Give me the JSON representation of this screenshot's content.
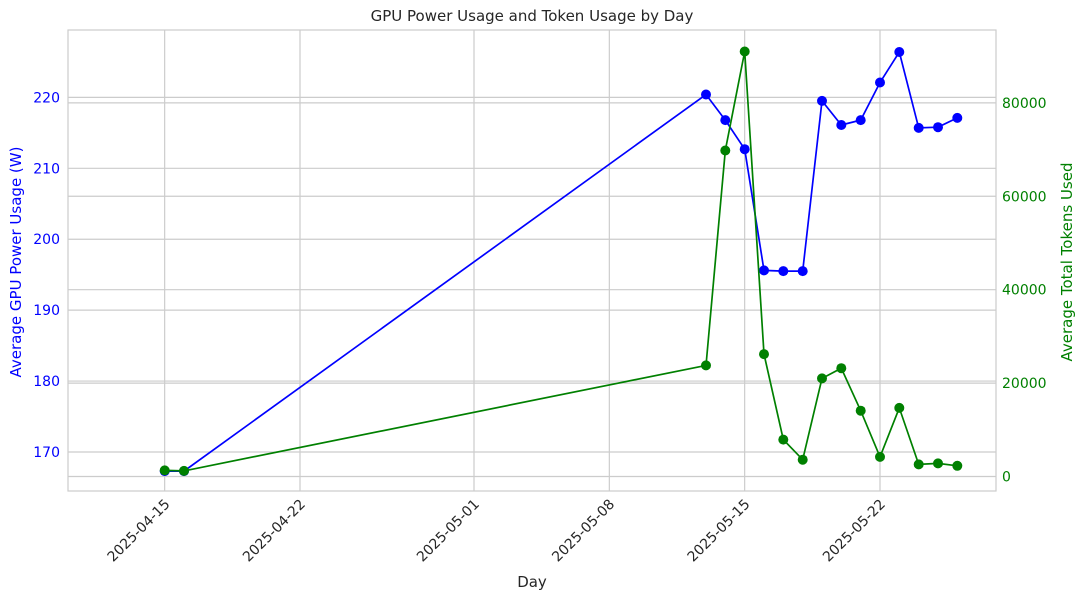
{
  "chart_data": {
    "type": "line",
    "title": "GPU Power Usage and Token Usage by Day",
    "xlabel": "Day",
    "ylabel_left": "Average GPU Power Usage (W)",
    "ylabel_right": "Average Total Tokens Used",
    "x_ticks": [
      "2025-04-15",
      "2025-04-22",
      "2025-05-01",
      "2025-05-08",
      "2025-05-15",
      "2025-05-22"
    ],
    "ylim_left": [
      164.5,
      229.5
    ],
    "yticks_left": [
      170,
      180,
      190,
      200,
      210,
      220
    ],
    "ylim_right": [
      -3100,
      95600
    ],
    "yticks_right": [
      0,
      20000,
      40000,
      60000,
      80000
    ],
    "grid": true,
    "colors": {
      "left": "#0000ff",
      "right": "#008000",
      "grid": "#cccccc",
      "axis": "#cccccc"
    },
    "series": [
      {
        "axis": "left",
        "name": "",
        "x": [
          "2025-04-15",
          "2025-04-16",
          "2025-05-13",
          "2025-05-14",
          "2025-05-15",
          "2025-05-16",
          "2025-05-17",
          "2025-05-18",
          "2025-05-19",
          "2025-05-20",
          "2025-05-21",
          "2025-05-22",
          "2025-05-23",
          "2025-05-24",
          "2025-05-25",
          "2025-05-26"
        ],
        "values": [
          167.3,
          167.3,
          220.4,
          216.8,
          212.7,
          195.6,
          195.5,
          195.5,
          219.5,
          216.1,
          216.8,
          222.1,
          226.4,
          215.7,
          215.8,
          217.1
        ]
      },
      {
        "axis": "right",
        "name": "",
        "x": [
          "2025-04-15",
          "2025-04-16",
          "2025-05-13",
          "2025-05-14",
          "2025-05-15",
          "2025-05-16",
          "2025-05-17",
          "2025-05-18",
          "2025-05-19",
          "2025-05-20",
          "2025-05-21",
          "2025-05-22",
          "2025-05-23",
          "2025-05-24",
          "2025-05-25",
          "2025-05-26"
        ],
        "values": [
          1300,
          1200,
          23800,
          69800,
          91000,
          26200,
          7900,
          3600,
          21000,
          23200,
          14100,
          4200,
          14700,
          2600,
          2800,
          2300
        ]
      }
    ]
  }
}
